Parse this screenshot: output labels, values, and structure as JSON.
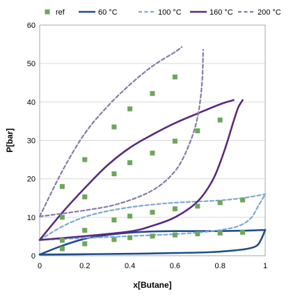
{
  "chart_data": {
    "type": "scatter",
    "xlabel": "x[Butane]",
    "ylabel": "P[bar]",
    "xlim": [
      0,
      1
    ],
    "ylim": [
      0,
      60
    ],
    "xticks": [
      "0",
      "0.2",
      "0.4",
      "0.6",
      "0.8",
      "1"
    ],
    "yticks": [
      "0",
      "10",
      "20",
      "30",
      "40",
      "50",
      "60"
    ],
    "grid": "horizontal",
    "legend_position": "top",
    "legend": [
      "ref",
      "60 °C",
      "100 °C",
      "160 °C",
      "200 °C"
    ],
    "series": [
      {
        "name": "ref",
        "kind": "markers",
        "color": "#6aaa56",
        "points": [
          [
            0.1,
            1.8
          ],
          [
            0.2,
            3.1
          ],
          [
            0.33,
            4.2
          ],
          [
            0.4,
            4.7
          ],
          [
            0.5,
            5.1
          ],
          [
            0.6,
            5.4
          ],
          [
            0.7,
            5.7
          ],
          [
            0.8,
            5.9
          ],
          [
            0.9,
            6.1
          ],
          [
            0.1,
            4.0
          ],
          [
            0.2,
            6.6
          ],
          [
            0.33,
            9.3
          ],
          [
            0.4,
            10.3
          ],
          [
            0.5,
            11.3
          ],
          [
            0.6,
            12.2
          ],
          [
            0.7,
            12.9
          ],
          [
            0.8,
            13.8
          ],
          [
            0.9,
            14.5
          ],
          [
            0.1,
            10.0
          ],
          [
            0.2,
            15.3
          ],
          [
            0.33,
            21.3
          ],
          [
            0.4,
            24.2
          ],
          [
            0.5,
            26.7
          ],
          [
            0.6,
            29.8
          ],
          [
            0.7,
            32.5
          ],
          [
            0.8,
            35.3
          ],
          [
            0.1,
            18.0
          ],
          [
            0.2,
            25.0
          ],
          [
            0.33,
            33.5
          ],
          [
            0.4,
            38.2
          ],
          [
            0.5,
            42.2
          ],
          [
            0.6,
            46.5
          ]
        ]
      },
      {
        "name": "60 °C",
        "kind": "solid",
        "color": "#1f4e8c",
        "bubble": [
          [
            0,
            0.3
          ],
          [
            0.1,
            2.6
          ],
          [
            0.2,
            4.4
          ],
          [
            0.3,
            5.4
          ],
          [
            0.4,
            6.0
          ],
          [
            0.5,
            6.3
          ],
          [
            0.6,
            6.4
          ],
          [
            0.7,
            6.4
          ],
          [
            0.8,
            6.4
          ],
          [
            0.9,
            6.5
          ],
          [
            1.0,
            6.7
          ]
        ],
        "dew": [
          [
            0,
            0.3
          ],
          [
            0.2,
            0.4
          ],
          [
            0.4,
            0.5
          ],
          [
            0.6,
            0.7
          ],
          [
            0.75,
            0.9
          ],
          [
            0.85,
            1.3
          ],
          [
            0.92,
            1.8
          ],
          [
            0.96,
            2.5
          ],
          [
            0.98,
            4.0
          ],
          [
            1.0,
            6.7
          ]
        ]
      },
      {
        "name": "100 °C",
        "kind": "dashed",
        "color": "#7aa7d8",
        "bubble": [
          [
            0,
            4.1
          ],
          [
            0.1,
            7.6
          ],
          [
            0.2,
            10.1
          ],
          [
            0.3,
            11.6
          ],
          [
            0.4,
            12.6
          ],
          [
            0.5,
            13.3
          ],
          [
            0.6,
            13.8
          ],
          [
            0.7,
            14.1
          ],
          [
            0.8,
            14.4
          ],
          [
            0.9,
            15.0
          ],
          [
            1.0,
            16.0
          ]
        ],
        "dew": [
          [
            0,
            4.1
          ],
          [
            0.2,
            4.6
          ],
          [
            0.4,
            5.1
          ],
          [
            0.6,
            5.6
          ],
          [
            0.75,
            6.3
          ],
          [
            0.85,
            7.2
          ],
          [
            0.9,
            8.2
          ],
          [
            0.94,
            10.0
          ],
          [
            0.97,
            13.0
          ],
          [
            1.0,
            16.0
          ]
        ]
      },
      {
        "name": "160 °C",
        "kind": "solid",
        "color": "#5a2a82",
        "bubble": [
          [
            0,
            4.1
          ],
          [
            0.1,
            11.2
          ],
          [
            0.2,
            17.6
          ],
          [
            0.3,
            23.5
          ],
          [
            0.4,
            28.1
          ],
          [
            0.5,
            31.5
          ],
          [
            0.6,
            34.5
          ],
          [
            0.7,
            37.0
          ],
          [
            0.8,
            39.4
          ],
          [
            0.86,
            40.5
          ]
        ],
        "dew": [
          [
            0,
            4.1
          ],
          [
            0.2,
            5.1
          ],
          [
            0.4,
            6.3
          ],
          [
            0.5,
            7.8
          ],
          [
            0.6,
            10.0
          ],
          [
            0.7,
            14.1
          ],
          [
            0.77,
            20.0
          ],
          [
            0.82,
            27.5
          ],
          [
            0.86,
            35.0
          ],
          [
            0.88,
            38.5
          ],
          [
            0.9,
            40.5
          ]
        ]
      },
      {
        "name": "200 °C",
        "kind": "dashed",
        "color": "#8878ae",
        "bubble": [
          [
            0,
            10.2
          ],
          [
            0.1,
            22.0
          ],
          [
            0.2,
            31.8
          ],
          [
            0.3,
            38.8
          ],
          [
            0.4,
            44.5
          ],
          [
            0.5,
            49.3
          ],
          [
            0.6,
            53.0
          ],
          [
            0.63,
            54.3
          ]
        ],
        "dew": [
          [
            0,
            10.2
          ],
          [
            0.2,
            11.8
          ],
          [
            0.35,
            13.5
          ],
          [
            0.5,
            17.0
          ],
          [
            0.6,
            22.0
          ],
          [
            0.66,
            28.5
          ],
          [
            0.7,
            36.0
          ],
          [
            0.72,
            45.0
          ],
          [
            0.725,
            53.6
          ]
        ]
      }
    ]
  }
}
